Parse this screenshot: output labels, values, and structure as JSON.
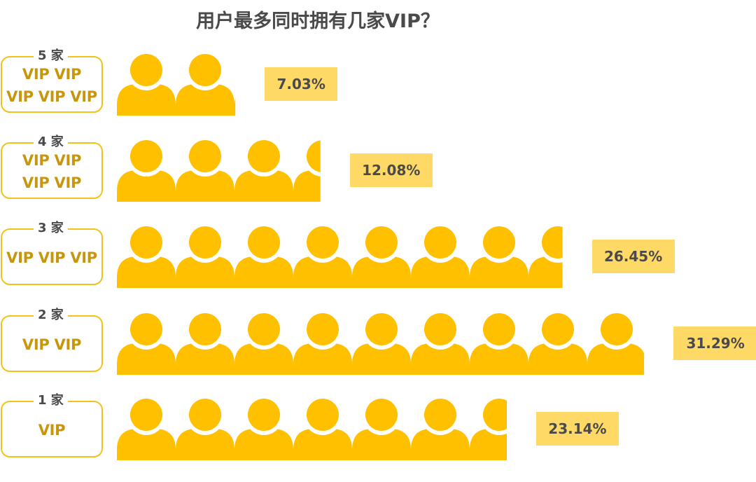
{
  "title": "用户最多同时拥有几家VIP？",
  "colors": {
    "person": "#ffc000",
    "box_border": "#f2c21a",
    "vip_text": "#c8960c",
    "pct_bg": "#ffd966",
    "text": "#4a4a4a"
  },
  "icon": "person-icon",
  "chart_data": {
    "type": "bar",
    "title": "用户最多同时拥有几家VIP？",
    "orientation": "horizontal",
    "categories": [
      "5 家",
      "4 家",
      "3 家",
      "2 家",
      "1 家"
    ],
    "vip_lines": [
      [
        "VIP VIP",
        "VIP VIP VIP"
      ],
      [
        "VIP VIP",
        "VIP VIP"
      ],
      [
        "VIP VIP VIP"
      ],
      [
        "VIP VIP"
      ],
      [
        "VIP"
      ]
    ],
    "values": [
      7.03,
      12.08,
      26.45,
      31.29,
      23.14
    ],
    "labels": [
      "7.03%",
      "12.08%",
      "26.45%",
      "31.29%",
      "23.14%"
    ],
    "unit": "%"
  }
}
